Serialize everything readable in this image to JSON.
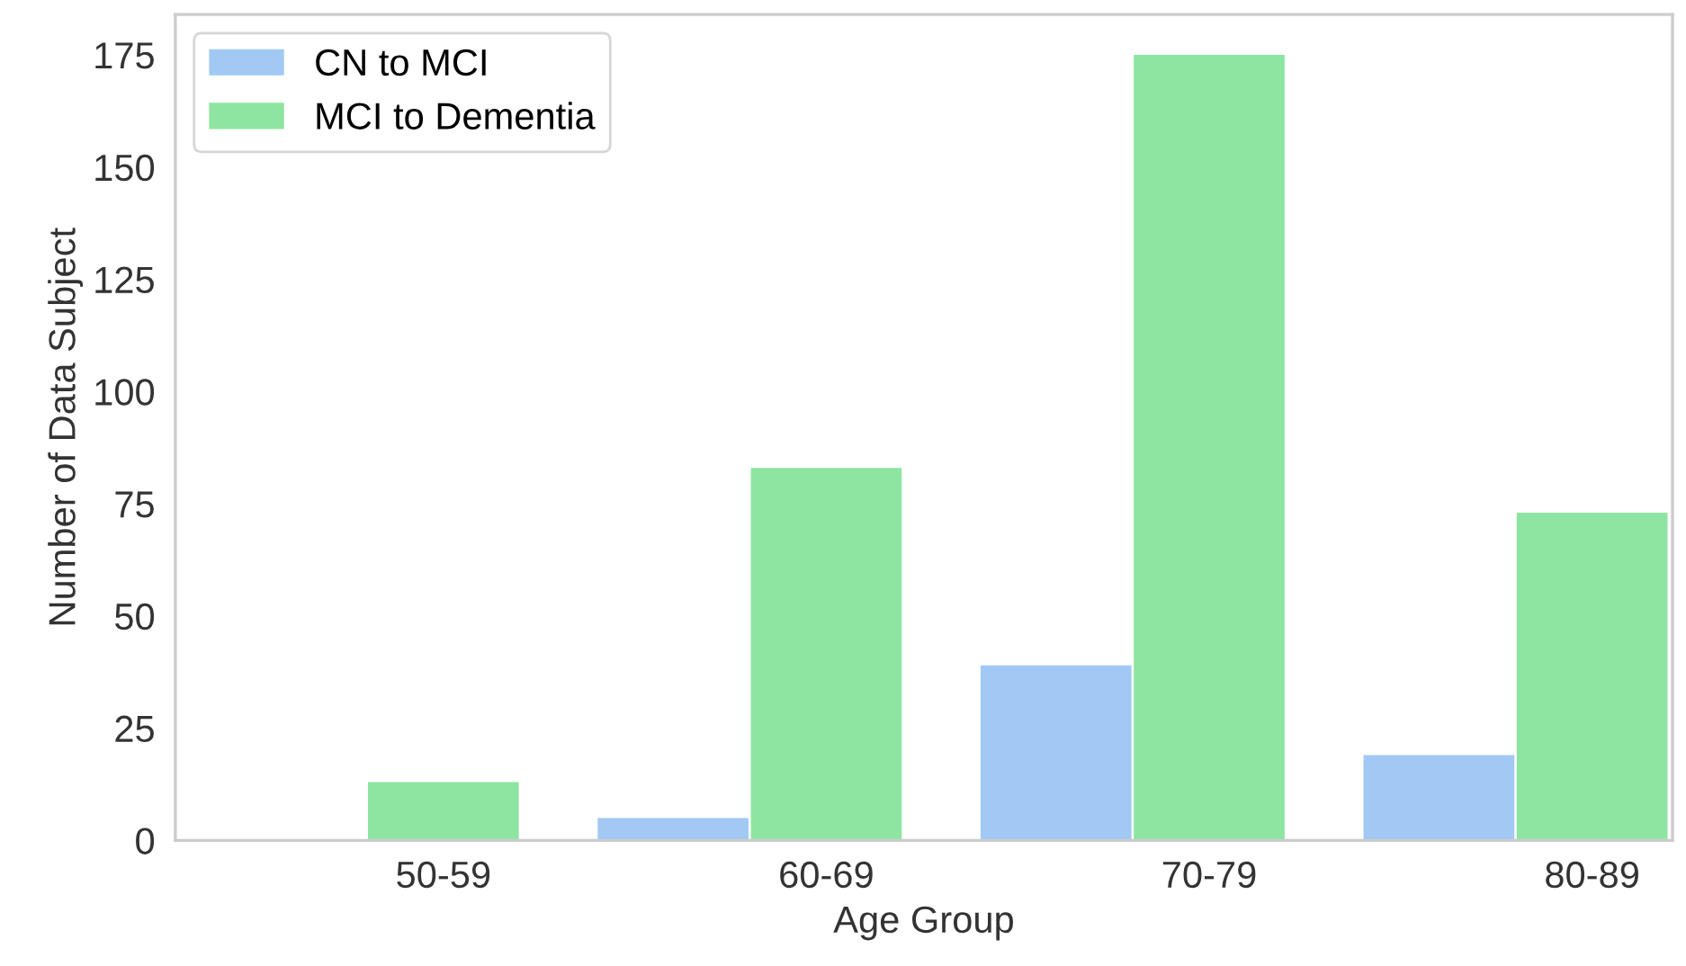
{
  "chart_data": {
    "type": "bar",
    "xlabel": "Age Group",
    "ylabel": "Number of Data Subject",
    "categories": [
      "50-59",
      "60-69",
      "70-79",
      "80-89"
    ],
    "series": [
      {
        "name": "CN to MCI",
        "color": "#a1c9f4",
        "values": [
          0,
          5,
          39,
          19
        ]
      },
      {
        "name": "MCI to Dementia",
        "color": "#8de5a1",
        "values": [
          13,
          83,
          175,
          73
        ]
      }
    ],
    "ylim": [
      0,
      184
    ],
    "yticks": [
      0,
      25,
      50,
      75,
      100,
      125,
      150,
      175
    ],
    "grid": false,
    "legend": "top left"
  }
}
